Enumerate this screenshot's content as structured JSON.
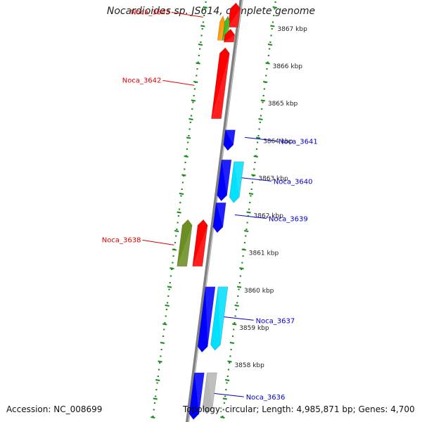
{
  "title": "Nocardioides sp. JS614, complete genome",
  "footer": {
    "accession": "Accession: NC_008699",
    "stats": "Topology: circular; Length: 4,985,871 bp; Genes: 4,700"
  },
  "colors": {
    "backbone": "#808080",
    "tick_dots": "#1a8a1a",
    "forward_label": "#e00000",
    "reverse_label": "#0000c8",
    "red_gene": "#ff0000",
    "blue_gene": "#0000ff",
    "cyan_gene": "#00e0ff",
    "orange_gene": "#ff9900",
    "green_gene": "#44bb22",
    "olive_gene": "#6b8e23",
    "gray_gene": "#b8b8b8"
  },
  "scale": {
    "unit": "kbp",
    "ticks": [
      {
        "value": 3867,
        "label": "3867 kbp"
      },
      {
        "value": 3866,
        "label": "3866 kbp"
      },
      {
        "value": 3865,
        "label": "3865 kbp"
      },
      {
        "value": 3864,
        "label": "3864 kbp"
      },
      {
        "value": 3863,
        "label": "3863 kbp"
      },
      {
        "value": 3862,
        "label": "3862 kbp"
      },
      {
        "value": 3861,
        "label": "3861 kbp"
      },
      {
        "value": 3860,
        "label": "3860 kbp"
      },
      {
        "value": 3859,
        "label": "3859 kbp"
      },
      {
        "value": 3858,
        "label": "3858 kbp"
      }
    ]
  },
  "genes": [
    {
      "label": "Noca_3643",
      "strand": "forward",
      "color": "red_gene",
      "start": 3867.75,
      "end": 3867.1
    },
    {
      "label": "",
      "strand": "forward",
      "color": "orange_gene",
      "start": 3867.4,
      "end": 3866.75
    },
    {
      "label": "",
      "strand": "forward",
      "color": "green_gene",
      "start": 3867.4,
      "end": 3866.75
    },
    {
      "label": "",
      "strand": "forward",
      "color": "red_gene",
      "start": 3867.05,
      "end": 3866.7
    },
    {
      "label": "Noca_3642",
      "strand": "forward",
      "color": "red_gene",
      "start": 3866.55,
      "end": 3864.65
    },
    {
      "label": "Noca_3641",
      "strand": "reverse",
      "color": "blue_gene",
      "start": 3864.35,
      "end": 3863.8
    },
    {
      "label": "Noca_3640",
      "strand": "reverse",
      "color": "blue_gene",
      "start": 3863.55,
      "end": 3862.45
    },
    {
      "label": "",
      "strand": "reverse",
      "color": "cyan_gene",
      "start": 3863.5,
      "end": 3862.4
    },
    {
      "label": "Noca_3639",
      "strand": "reverse",
      "color": "blue_gene",
      "start": 3862.4,
      "end": 3861.6
    },
    {
      "label": "Noca_3638",
      "strand": "forward",
      "color": "olive_gene",
      "start": 3861.95,
      "end": 3860.7
    },
    {
      "label": "",
      "strand": "forward",
      "color": "red_gene",
      "start": 3861.95,
      "end": 3860.7
    },
    {
      "label": "Noca_3637",
      "strand": "reverse",
      "color": "blue_gene",
      "start": 3860.15,
      "end": 3858.4
    },
    {
      "label": "",
      "strand": "reverse",
      "color": "cyan_gene",
      "start": 3860.15,
      "end": 3858.45
    },
    {
      "label": "Noca_3636",
      "strand": "reverse",
      "color": "blue_gene",
      "start": 3857.85,
      "end": 3856.6
    },
    {
      "label": "",
      "strand": "reverse",
      "color": "gray_gene",
      "start": 3857.85,
      "end": 3856.75
    }
  ]
}
